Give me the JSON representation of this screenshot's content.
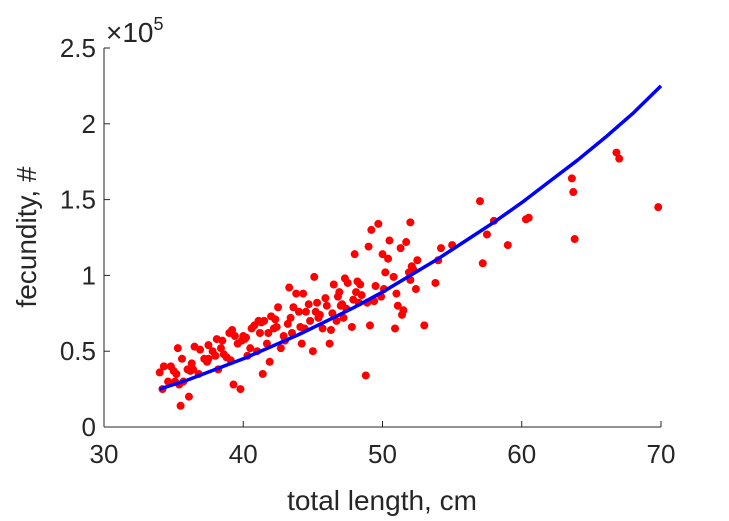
{
  "chart_data": {
    "type": "scatter",
    "xlabel": "total length, cm",
    "ylabel": "fecundity, #",
    "xlim": [
      30,
      70
    ],
    "ylim": [
      0,
      2.5
    ],
    "y_multiplier": {
      "base": "10",
      "exponent": "5",
      "prefix": "×"
    },
    "x_ticks": [
      "30",
      "40",
      "50",
      "60",
      "70"
    ],
    "y_ticks": [
      "0",
      "0.5",
      "1",
      "1.5",
      "2",
      "2.5"
    ],
    "grid": false,
    "legend": "none",
    "colors": {
      "points": "#ff0000",
      "fit_line": "#0000ff",
      "axes": "#262626"
    },
    "series": [
      {
        "kind": "points",
        "x": [
          34.0,
          34.3,
          34.6,
          35.0,
          35.1,
          35.3,
          35.5,
          35.7,
          36.0,
          36.1,
          36.3,
          36.5,
          36.8,
          37.2,
          37.5,
          37.8,
          38.0,
          38.2,
          38.5,
          38.8,
          39.0,
          39.1,
          39.3,
          39.6,
          39.8,
          40.0,
          40.1,
          40.3,
          40.5,
          40.8,
          41.0,
          41.2,
          41.4,
          41.5,
          41.7,
          41.9,
          42.0,
          42.2,
          42.5,
          42.7,
          43.0,
          43.2,
          43.3,
          43.5,
          43.8,
          44.0,
          44.2,
          44.4,
          44.5,
          44.8,
          45.0,
          45.1,
          45.3,
          45.5,
          45.7,
          46.0,
          46.2,
          46.5,
          46.7,
          46.8,
          47.0,
          47.2,
          47.3,
          47.5,
          47.8,
          48.0,
          48.2,
          48.3,
          48.5,
          48.8,
          49.0,
          49.2,
          49.5,
          49.7,
          50.0,
          50.2,
          50.5,
          50.8,
          51.0,
          51.3,
          51.5,
          51.7,
          52.0,
          52.0,
          52.2,
          52.5,
          53.0,
          53.8,
          54.0,
          54.2,
          55.0,
          57.0,
          57.2,
          57.5,
          58.0,
          59.0,
          60.3,
          60.5,
          63.6,
          63.7,
          63.8,
          66.8,
          67.0,
          69.8,
          34.2,
          34.8,
          35.2,
          35.6,
          36.2,
          36.9,
          37.5,
          38.1,
          38.6,
          39.4,
          39.9,
          40.6,
          41.1,
          41.8,
          42.3,
          42.9,
          43.6,
          44.1,
          44.7,
          45.4,
          45.9,
          46.4,
          46.9,
          47.4,
          47.9,
          48.4,
          48.9,
          49.4,
          49.9,
          50.4,
          50.9,
          51.4,
          51.9,
          52.4,
          35.4,
          36.4,
          37.4,
          38.4,
          39.2,
          40.2,
          41.3,
          42.4,
          43.4,
          44.3,
          45.2,
          46.3,
          47.1,
          48.1,
          49.1,
          50.1,
          51.1,
          52.1
        ],
        "y": [
          0.36,
          0.4,
          0.3,
          0.37,
          0.3,
          0.52,
          0.14,
          0.3,
          0.38,
          0.2,
          0.42,
          0.53,
          0.35,
          0.45,
          0.54,
          0.5,
          0.47,
          0.38,
          0.57,
          0.46,
          0.62,
          0.44,
          0.28,
          0.55,
          0.25,
          0.6,
          0.58,
          0.47,
          0.52,
          0.67,
          0.5,
          0.62,
          0.35,
          0.7,
          0.55,
          0.43,
          0.73,
          0.65,
          0.79,
          0.52,
          0.57,
          0.68,
          0.92,
          0.62,
          0.88,
          0.76,
          0.55,
          0.65,
          0.76,
          0.7,
          0.5,
          0.99,
          0.82,
          0.74,
          0.65,
          0.8,
          0.55,
          0.94,
          0.7,
          0.86,
          0.8,
          0.72,
          0.98,
          0.95,
          0.66,
          1.14,
          0.96,
          0.82,
          0.87,
          0.34,
          1.19,
          1.3,
          0.93,
          1.34,
          1.14,
          1.02,
          1.23,
          0.99,
          0.88,
          1.18,
          0.77,
          1.22,
          0.97,
          1.35,
          1.04,
          1.1,
          0.67,
          0.95,
          1.1,
          1.18,
          1.2,
          1.49,
          1.08,
          1.27,
          1.36,
          1.2,
          1.37,
          1.38,
          1.64,
          1.55,
          1.24,
          1.81,
          1.77,
          1.45,
          0.25,
          0.4,
          0.35,
          0.45,
          0.37,
          0.51,
          0.45,
          0.58,
          0.48,
          0.6,
          0.57,
          0.65,
          0.7,
          0.62,
          0.71,
          0.6,
          0.79,
          0.66,
          0.81,
          0.72,
          0.85,
          0.75,
          0.89,
          0.78,
          0.84,
          0.94,
          0.82,
          0.83,
          0.86,
          1.11,
          0.65,
          0.74,
          1.02,
          0.91,
          0.28,
          0.38,
          0.43,
          0.52,
          0.64,
          0.59,
          0.69,
          0.66,
          0.72,
          0.88,
          0.76,
          0.64,
          0.81,
          0.89,
          0.67,
          0.91,
          0.8,
          1.06
        ]
      },
      {
        "kind": "line",
        "x": [
          34,
          36,
          38,
          40,
          42,
          44,
          46,
          48,
          50,
          52,
          54,
          56,
          58,
          60,
          62,
          64,
          66,
          68,
          70
        ],
        "y": [
          0.25,
          0.31,
          0.38,
          0.45,
          0.53,
          0.61,
          0.7,
          0.79,
          0.89,
          1.0,
          1.11,
          1.23,
          1.35,
          1.48,
          1.62,
          1.76,
          1.91,
          2.07,
          2.25
        ]
      }
    ]
  }
}
